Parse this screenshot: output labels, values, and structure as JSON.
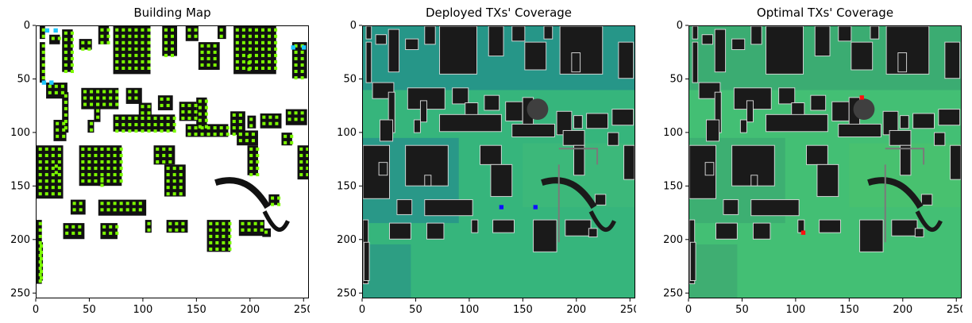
{
  "figure": {
    "panels": [
      {
        "title": "Building Map"
      },
      {
        "title": "Deployed TXs' Coverage"
      },
      {
        "title": "Optimal TXs' Coverage"
      }
    ],
    "ticks": [
      "0",
      "50",
      "100",
      "150",
      "200",
      "250"
    ]
  },
  "chart_data": [
    {
      "type": "heatmap",
      "title": "Building Map",
      "xlabel": "",
      "ylabel": "",
      "xlim": [
        0,
        255
      ],
      "ylim": [
        255,
        0
      ],
      "xticks": [
        0,
        50,
        100,
        150,
        200,
        250
      ],
      "yticks": [
        0,
        50,
        100,
        150,
        200,
        250
      ],
      "legend": "none",
      "colors": {
        "background": "#ffffff",
        "building": "#111111",
        "candidate_green": "#7cfc00",
        "candidate_blue": "#1ec8ff"
      }
    },
    {
      "type": "heatmap",
      "title": "Deployed TXs' Coverage",
      "xlabel": "",
      "ylabel": "",
      "xlim": [
        0,
        255
      ],
      "ylim": [
        255,
        0
      ],
      "xticks": [
        0,
        50,
        100,
        150,
        200,
        250
      ],
      "yticks": [
        0,
        50,
        100,
        150,
        200,
        250
      ],
      "legend": "none",
      "tx_points": [
        [
          130,
          170
        ],
        [
          162,
          170
        ]
      ],
      "tx_color": "#1010ff"
    },
    {
      "type": "heatmap",
      "title": "Optimal TXs' Coverage",
      "xlabel": "",
      "ylabel": "",
      "xlim": [
        0,
        255
      ],
      "ylim": [
        255,
        0
      ],
      "xticks": [
        0,
        50,
        100,
        150,
        200,
        250
      ],
      "yticks": [
        0,
        50,
        100,
        150,
        200,
        250
      ],
      "legend": "none",
      "tx_points": [
        [
          162,
          67
        ],
        [
          107,
          194
        ]
      ],
      "tx_color": "#ff1010"
    }
  ]
}
